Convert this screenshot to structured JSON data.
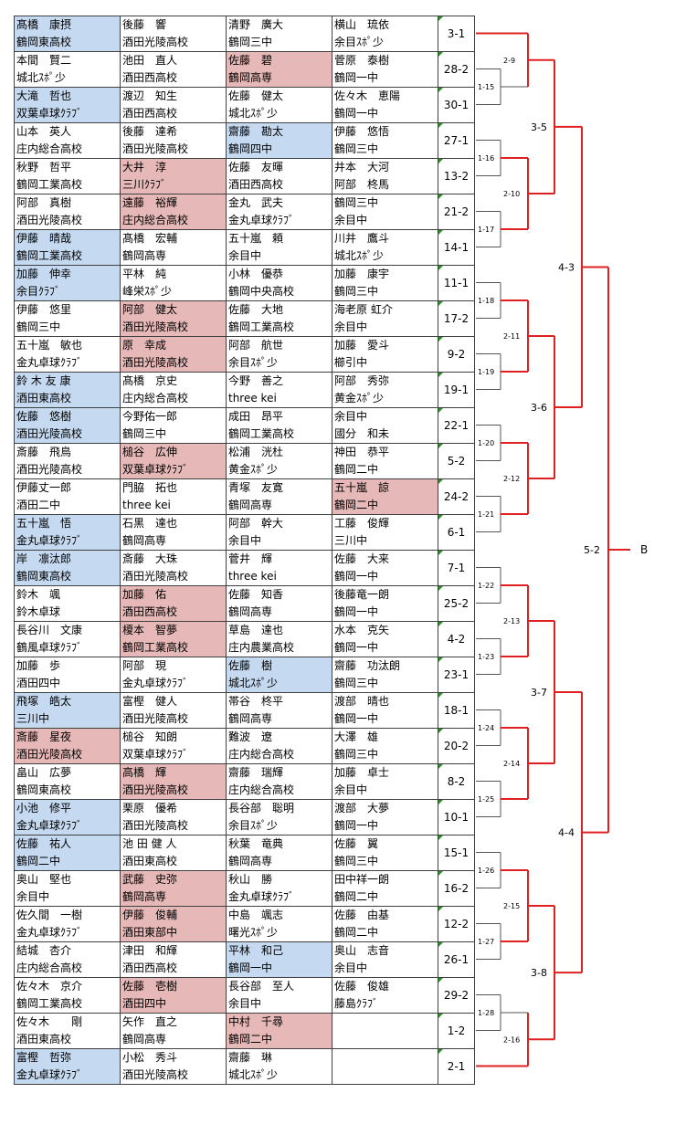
{
  "rows": [
    {
      "score": "3-1",
      "players": [
        {
          "name": "髙橋　康摂",
          "club": "鶴岡東高校",
          "hl": "blue"
        },
        {
          "name": "後藤　響",
          "club": "酒田光陵高校",
          "hl": ""
        },
        {
          "name": "清野　廣大",
          "club": "鶴岡三中",
          "hl": ""
        },
        {
          "name": "横山　琉依",
          "club": "余目ｽﾎﾟ少",
          "hl": ""
        }
      ]
    },
    {
      "score": "28-2",
      "players": [
        {
          "name": "本間　賢二",
          "club": "城北ｽﾎﾟ少",
          "hl": ""
        },
        {
          "name": "池田　直人",
          "club": "酒田西高校",
          "hl": ""
        },
        {
          "name": "佐藤　碧",
          "club": "鶴岡高専",
          "hl": "pink"
        },
        {
          "name": "菅原　泰樹",
          "club": "鶴岡一中",
          "hl": ""
        }
      ]
    },
    {
      "score": "30-1",
      "players": [
        {
          "name": "大滝　哲也",
          "club": "双葉卓球ｸﾗﾌﾞ",
          "hl": "blue"
        },
        {
          "name": "渡辺　知生",
          "club": "酒田西高校",
          "hl": ""
        },
        {
          "name": "佐藤　健太",
          "club": "城北ｽﾎﾟ少",
          "hl": ""
        },
        {
          "name": "佐々木　恵陽",
          "club": "鶴岡一中",
          "hl": ""
        }
      ]
    },
    {
      "score": "27-1",
      "players": [
        {
          "name": "山本　英人",
          "club": "庄内総合高校",
          "hl": ""
        },
        {
          "name": "後藤　達希",
          "club": "酒田光陵高校",
          "hl": ""
        },
        {
          "name": "齋藤　勘太",
          "club": "鶴岡四中",
          "hl": "blue"
        },
        {
          "name": "伊藤　悠悟",
          "club": "鶴岡三中",
          "hl": ""
        }
      ]
    },
    {
      "score": "13-2",
      "players": [
        {
          "name": "秋野　哲平",
          "club": "鶴岡工業高校",
          "hl": ""
        },
        {
          "name": "大井　淳",
          "club": "三川ｸﾗﾌﾞ",
          "hl": "pink"
        },
        {
          "name": "佐藤　友暉",
          "club": "酒田西高校",
          "hl": ""
        },
        {
          "name": "井本　大河",
          "club": "阿部　柊馬",
          "hl": ""
        }
      ]
    },
    {
      "score": "21-2",
      "players": [
        {
          "name": "阿部　真樹",
          "club": "酒田光陵高校",
          "hl": ""
        },
        {
          "name": "遠藤　裕輝",
          "club": "庄内総合高校",
          "hl": "pink"
        },
        {
          "name": "金丸　武夫",
          "club": "金丸卓球ｸﾗﾌﾞ",
          "hl": ""
        },
        {
          "name": "鶴岡三中",
          "club": "余目中",
          "hl": ""
        }
      ]
    },
    {
      "score": "14-1",
      "players": [
        {
          "name": "伊藤　晴哉",
          "club": "鶴岡工業高校",
          "hl": "blue"
        },
        {
          "name": "髙橋　宏輔",
          "club": "鶴岡高専",
          "hl": ""
        },
        {
          "name": "五十嵐　頼",
          "club": "余目中",
          "hl": ""
        },
        {
          "name": "川井　鷹斗",
          "club": "城北ｽﾎﾟ少",
          "hl": ""
        }
      ]
    },
    {
      "score": "11-1",
      "players": [
        {
          "name": "加藤　伸幸",
          "club": "余目ｸﾗﾌﾞ",
          "hl": "blue"
        },
        {
          "name": "平林　純",
          "club": "峰栄ｽﾎﾟ少",
          "hl": ""
        },
        {
          "name": "小林　優恭",
          "club": "鶴岡中央高校",
          "hl": ""
        },
        {
          "name": "加藤　康宇",
          "club": "鶴岡三中",
          "hl": ""
        }
      ]
    },
    {
      "score": "17-2",
      "players": [
        {
          "name": "伊藤　悠里",
          "club": "鶴岡三中",
          "hl": ""
        },
        {
          "name": "阿部　健太",
          "club": "酒田光陵高校",
          "hl": "pink"
        },
        {
          "name": "佐藤　大地",
          "club": "鶴岡工業高校",
          "hl": ""
        },
        {
          "name": "海老原 虹介",
          "club": "余目中",
          "hl": ""
        }
      ]
    },
    {
      "score": "9-2",
      "players": [
        {
          "name": "五十嵐　敏也",
          "club": "金丸卓球ｸﾗﾌﾞ",
          "hl": ""
        },
        {
          "name": "原　幸成",
          "club": "酒田光陵高校",
          "hl": "pink"
        },
        {
          "name": "阿部　航世",
          "club": "余目ｽﾎﾟ少",
          "hl": ""
        },
        {
          "name": "加藤　愛斗",
          "club": "櫛引中",
          "hl": ""
        }
      ]
    },
    {
      "score": "19-1",
      "players": [
        {
          "name": "鈴 木 友 康",
          "club": "酒田東高校",
          "hl": "blue"
        },
        {
          "name": "髙橋　京史",
          "club": "庄内総合高校",
          "hl": ""
        },
        {
          "name": "今野　善之",
          "club": "three kei",
          "hl": ""
        },
        {
          "name": "阿部　秀弥",
          "club": "黄金ｽﾎﾟ少",
          "hl": ""
        }
      ]
    },
    {
      "score": "22-1",
      "players": [
        {
          "name": "佐藤　悠樹",
          "club": "酒田光陵高校",
          "hl": "blue"
        },
        {
          "name": "今野佑一郎",
          "club": "鶴岡三中",
          "hl": ""
        },
        {
          "name": "成田　昂平",
          "club": "鶴岡工業高校",
          "hl": ""
        },
        {
          "name": "余目中",
          "club": "國分　和未",
          "hl": ""
        }
      ]
    },
    {
      "score": "5-2",
      "players": [
        {
          "name": "斎藤　飛鳥",
          "club": "酒田光陵高校",
          "hl": ""
        },
        {
          "name": "槌谷　広伸",
          "club": "双葉卓球ｸﾗﾌﾞ",
          "hl": "pink"
        },
        {
          "name": "松浦　洸杜",
          "club": "黄金ｽﾎﾟ少",
          "hl": ""
        },
        {
          "name": "神田　恭平",
          "club": "鶴岡二中",
          "hl": ""
        }
      ]
    },
    {
      "score": "24-2",
      "players": [
        {
          "name": "伊藤丈一郎",
          "club": "酒田二中",
          "hl": ""
        },
        {
          "name": "門脇　拓也",
          "club": "three kei",
          "hl": ""
        },
        {
          "name": "青塚　友寛",
          "club": "鶴岡高専",
          "hl": ""
        },
        {
          "name": "五十嵐　諒",
          "club": "鶴岡二中",
          "hl": "pink"
        }
      ]
    },
    {
      "score": "6-1",
      "players": [
        {
          "name": "五十嵐　悟",
          "club": "金丸卓球ｸﾗﾌﾞ",
          "hl": "blue"
        },
        {
          "name": "石黒　達也",
          "club": "鶴岡高専",
          "hl": ""
        },
        {
          "name": "阿部　幹大",
          "club": "余目中",
          "hl": ""
        },
        {
          "name": "工藤　俊輝",
          "club": "三川中",
          "hl": ""
        }
      ]
    },
    {
      "score": "7-1",
      "players": [
        {
          "name": "岸　凛汰郎",
          "club": "鶴岡東高校",
          "hl": "blue"
        },
        {
          "name": "斎藤　大珠",
          "club": "酒田光陵高校",
          "hl": ""
        },
        {
          "name": "菅井　輝",
          "club": "three kei",
          "hl": ""
        },
        {
          "name": "佐藤　大来",
          "club": "鶴岡一中",
          "hl": ""
        }
      ]
    },
    {
      "score": "25-2",
      "players": [
        {
          "name": "鈴木　颯",
          "club": "鈴木卓球",
          "hl": ""
        },
        {
          "name": "加藤　佑",
          "club": "酒田西高校",
          "hl": "pink"
        },
        {
          "name": "佐藤　知香",
          "club": "鶴岡高専",
          "hl": ""
        },
        {
          "name": "後藤竜一朗",
          "club": "鶴岡一中",
          "hl": ""
        }
      ]
    },
    {
      "score": "4-2",
      "players": [
        {
          "name": "長谷川　文康",
          "club": "鶴風卓球ｸﾗﾌﾞ",
          "hl": ""
        },
        {
          "name": "榎本　智夢",
          "club": "鶴岡工業高校",
          "hl": "pink"
        },
        {
          "name": "草島　達也",
          "club": "庄内農業高校",
          "hl": ""
        },
        {
          "name": "水本　克矢",
          "club": "鶴岡一中",
          "hl": ""
        }
      ]
    },
    {
      "score": "23-1",
      "players": [
        {
          "name": "加藤　歩",
          "club": "酒田四中",
          "hl": ""
        },
        {
          "name": "阿部　現",
          "club": "金丸卓球ｸﾗﾌﾞ",
          "hl": ""
        },
        {
          "name": "佐藤　樹",
          "club": "城北ｽﾎﾟ少",
          "hl": "blue"
        },
        {
          "name": "齋藤　功汰朗",
          "club": "鶴岡三中",
          "hl": ""
        }
      ]
    },
    {
      "score": "18-1",
      "players": [
        {
          "name": "飛塚　皓太",
          "club": "三川中",
          "hl": "blue"
        },
        {
          "name": "富樫　健人",
          "club": "酒田光陵高校",
          "hl": ""
        },
        {
          "name": "帯谷　柊平",
          "club": "鶴岡高専",
          "hl": ""
        },
        {
          "name": "渡部　晴也",
          "club": "鶴岡一中",
          "hl": ""
        }
      ]
    },
    {
      "score": "20-2",
      "players": [
        {
          "name": "斎藤　星夜",
          "club": "酒田光陵高校",
          "hl": "pink"
        },
        {
          "name": "槌谷　知朗",
          "club": "双葉卓球ｸﾗﾌﾞ",
          "hl": ""
        },
        {
          "name": "難波　遼",
          "club": "庄内総合高校",
          "hl": ""
        },
        {
          "name": "大澤　雄",
          "club": "鶴岡三中",
          "hl": ""
        }
      ]
    },
    {
      "score": "8-2",
      "players": [
        {
          "name": "畠山　広夢",
          "club": "鶴岡東高校",
          "hl": ""
        },
        {
          "name": "高橋　輝",
          "club": "酒田光陵高校",
          "hl": "pink"
        },
        {
          "name": "齋藤　瑞輝",
          "club": "庄内総合高校",
          "hl": ""
        },
        {
          "name": "加藤　卓士",
          "club": "余目中",
          "hl": ""
        }
      ]
    },
    {
      "score": "10-1",
      "players": [
        {
          "name": "小池　修平",
          "club": "金丸卓球ｸﾗﾌﾞ",
          "hl": "blue"
        },
        {
          "name": "栗原　優希",
          "club": "酒田光陵高校",
          "hl": ""
        },
        {
          "name": "長谷部　聡明",
          "club": "余目ｽﾎﾟ少",
          "hl": ""
        },
        {
          "name": "渡部　大夢",
          "club": "鶴岡一中",
          "hl": ""
        }
      ]
    },
    {
      "score": "15-1",
      "players": [
        {
          "name": "佐藤　祐人",
          "club": "鶴岡二中",
          "hl": "blue"
        },
        {
          "name": "池 田 健 人",
          "club": "酒田東高校",
          "hl": ""
        },
        {
          "name": "秋葉　竜典",
          "club": "鶴岡高専",
          "hl": ""
        },
        {
          "name": "佐藤　翼",
          "club": "鶴岡三中",
          "hl": ""
        }
      ]
    },
    {
      "score": "16-2",
      "players": [
        {
          "name": "奥山　堅也",
          "club": "余目中",
          "hl": ""
        },
        {
          "name": "武藤　史弥",
          "club": "鶴岡高専",
          "hl": "pink"
        },
        {
          "name": "秋山　勝",
          "club": "金丸卓球ｸﾗﾌﾞ",
          "hl": ""
        },
        {
          "name": "田中祥一朗",
          "club": "鶴岡二中",
          "hl": ""
        }
      ]
    },
    {
      "score": "12-2",
      "players": [
        {
          "name": "佐久間　一樹",
          "club": "金丸卓球ｸﾗﾌﾞ",
          "hl": ""
        },
        {
          "name": "伊藤　俊輔",
          "club": "酒田東部中",
          "hl": "pink"
        },
        {
          "name": "中島　颯志",
          "club": "曙光ｽﾎﾟ少",
          "hl": ""
        },
        {
          "name": "佐藤　由基",
          "club": "鶴岡二中",
          "hl": ""
        }
      ]
    },
    {
      "score": "26-1",
      "players": [
        {
          "name": "結城　杏介",
          "club": "庄内総合高校",
          "hl": ""
        },
        {
          "name": "津田　和輝",
          "club": "酒田西高校",
          "hl": ""
        },
        {
          "name": "平林　和己",
          "club": "鶴岡一中",
          "hl": "blue"
        },
        {
          "name": "奥山　志音",
          "club": "余目中",
          "hl": ""
        }
      ]
    },
    {
      "score": "29-2",
      "players": [
        {
          "name": "佐々木　京介",
          "club": "鶴岡工業高校",
          "hl": ""
        },
        {
          "name": "佐藤　壱樹",
          "club": "酒田四中",
          "hl": "pink"
        },
        {
          "name": "長谷部　至人",
          "club": "余目中",
          "hl": ""
        },
        {
          "name": "佐藤　俊雄",
          "club": "藤島ｸﾗﾌﾞ",
          "hl": ""
        }
      ]
    },
    {
      "score": "1-2",
      "players": [
        {
          "name": "佐々木　　剛",
          "club": "酒田東高校",
          "hl": ""
        },
        {
          "name": "矢作　直之",
          "club": "鶴岡高専",
          "hl": ""
        },
        {
          "name": "中村　千尋",
          "club": "鶴岡二中",
          "hl": "pink"
        },
        {
          "name": "",
          "club": "",
          "hl": ""
        }
      ]
    },
    {
      "score": "2-1",
      "players": [
        {
          "name": "富樫　哲弥",
          "club": "金丸卓球ｸﾗﾌﾞ",
          "hl": "blue"
        },
        {
          "name": "小松　秀斗",
          "club": "酒田光陵高校",
          "hl": ""
        },
        {
          "name": "齋藤　琳",
          "club": "城北ｽﾎﾟ少",
          "hl": ""
        },
        {
          "name": "",
          "club": "",
          "hl": ""
        }
      ]
    }
  ],
  "bracket": {
    "r1": [
      {
        "label": "1-15",
        "a": 1,
        "b": 2
      },
      {
        "label": "1-16",
        "a": 3,
        "b": 4
      },
      {
        "label": "1-17",
        "a": 5,
        "b": 6
      },
      {
        "label": "1-18",
        "a": 7,
        "b": 8
      },
      {
        "label": "1-19",
        "a": 9,
        "b": 10
      },
      {
        "label": "1-20",
        "a": 11,
        "b": 12
      },
      {
        "label": "1-21",
        "a": 13,
        "b": 14
      },
      {
        "label": "1-22",
        "a": 15,
        "b": 16
      },
      {
        "label": "1-23",
        "a": 17,
        "b": 18
      },
      {
        "label": "1-24",
        "a": 19,
        "b": 20
      },
      {
        "label": "1-25",
        "a": 21,
        "b": 22
      },
      {
        "label": "1-26",
        "a": 23,
        "b": 24
      },
      {
        "label": "1-27",
        "a": 25,
        "b": 26
      },
      {
        "label": "1-28",
        "a": 27,
        "b": 28
      }
    ],
    "r2": [
      {
        "label": "2-9"
      },
      {
        "label": "2-10"
      },
      {
        "label": "2-11"
      },
      {
        "label": "2-12"
      },
      {
        "label": "2-13"
      },
      {
        "label": "2-14"
      },
      {
        "label": "2-15"
      },
      {
        "label": "2-16"
      }
    ],
    "r3": [
      {
        "label": "3-5"
      },
      {
        "label": "3-6"
      },
      {
        "label": "3-7"
      },
      {
        "label": "3-8"
      }
    ],
    "r4": [
      {
        "label": "4-3"
      },
      {
        "label": "4-4"
      }
    ],
    "r5": {
      "label": "5-2"
    },
    "block": "B"
  },
  "colors": {
    "highlight_blue": "#c5d9f1",
    "highlight_pink": "#e6b8b7",
    "bracket_red": "#e02020",
    "bracket_gray": "#555555",
    "corner_green": "#2e8b2e"
  }
}
